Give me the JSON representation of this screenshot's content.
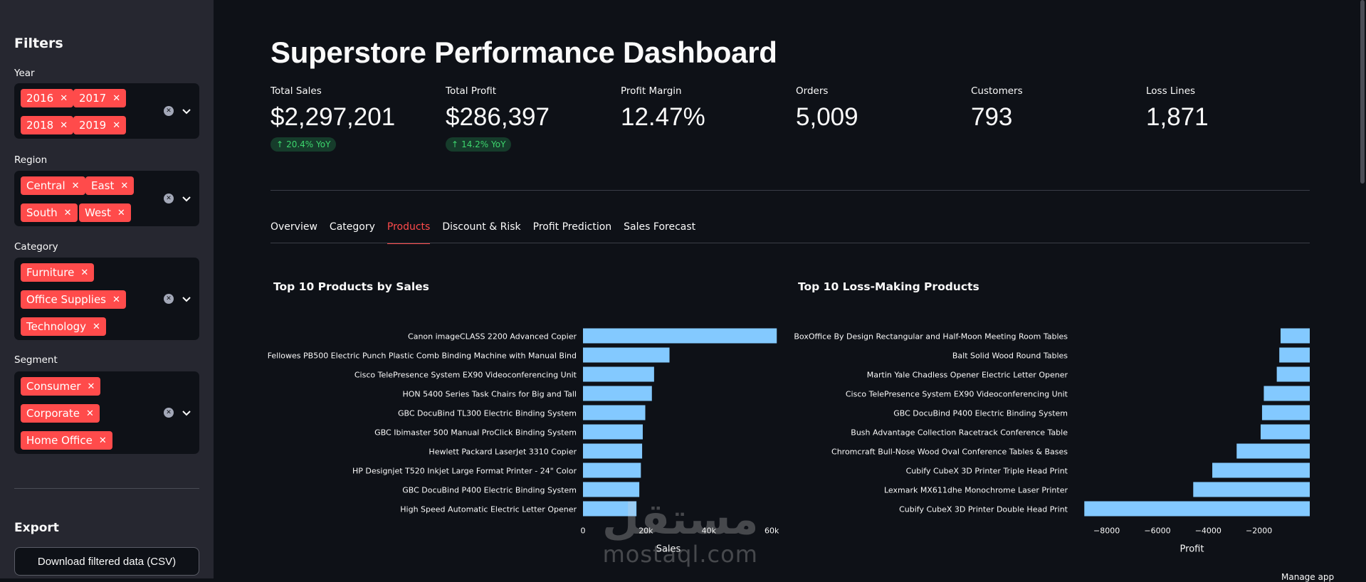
{
  "sidebar": {
    "title": "Filters",
    "filters": [
      {
        "label": "Year",
        "chips": [
          "2016",
          "2017",
          "2018",
          "2019"
        ]
      },
      {
        "label": "Region",
        "chips": [
          "Central",
          "East",
          "South",
          "West"
        ]
      },
      {
        "label": "Category",
        "chips": [
          "Furniture",
          "Office Supplies",
          "Technology"
        ]
      },
      {
        "label": "Segment",
        "chips": [
          "Consumer",
          "Corporate",
          "Home Office"
        ]
      }
    ],
    "export_title": "Export",
    "download_label": "Download filtered data (CSV)"
  },
  "main": {
    "title": "Superstore Performance Dashboard",
    "metrics": [
      {
        "label": "Total Sales",
        "value": "$2,297,201",
        "delta": "20.4% YoY"
      },
      {
        "label": "Total Profit",
        "value": "$286,397",
        "delta": "14.2% YoY"
      },
      {
        "label": "Profit Margin",
        "value": "12.47%"
      },
      {
        "label": "Orders",
        "value": "5,009"
      },
      {
        "label": "Customers",
        "value": "793"
      },
      {
        "label": "Loss Lines",
        "value": "1,871"
      }
    ],
    "tabs": [
      "Overview",
      "Category",
      "Products",
      "Discount & Risk",
      "Profit Prediction",
      "Sales Forecast"
    ],
    "active_tab": "Products"
  },
  "colors": {
    "accent": "#ff4b4b",
    "bar": "#83c9ff",
    "delta_text": "#3dd56d",
    "delta_bg": "#163c2b"
  },
  "watermark": {
    "arabic": "مستقل",
    "latin": "mostaql.com"
  },
  "manage_app": "Manage app",
  "chart_data": [
    {
      "type": "bar",
      "orientation": "horizontal",
      "title": "Top 10 Products by Sales",
      "xlabel": "Sales",
      "ylabel": "",
      "categories": [
        "Canon imageCLASS 2200 Advanced Copier",
        "Fellowes PB500 Electric Punch Plastic Comb Binding Machine with Manual Bind",
        "Cisco TelePresence System EX90 Videoconferencing Unit",
        "HON 5400 Series Task Chairs for Big and Tall",
        "GBC DocuBind TL300 Electric Binding System",
        "GBC Ibimaster 500 Manual ProClick Binding System",
        "Hewlett Packard LaserJet 3310 Copier",
        "HP Designjet T520 Inkjet Large Format Printer - 24\" Color",
        "GBC DocuBind P400 Electric Binding System",
        "High Speed Automatic Electric Letter Opener"
      ],
      "values": [
        61600,
        27500,
        22600,
        21900,
        19800,
        19000,
        18800,
        18400,
        17900,
        17000
      ],
      "xlim": [
        0,
        62000
      ],
      "xticks": [
        "0",
        "20k",
        "40k",
        "60k"
      ],
      "xtick_values": [
        0,
        20000,
        40000,
        60000
      ]
    },
    {
      "type": "bar",
      "orientation": "horizontal",
      "title": "Top 10 Loss-Making Products",
      "xlabel": "Profit",
      "ylabel": "",
      "categories": [
        "BoxOffice By Design Rectangular and Half-Moon Meeting Room Tables",
        "Balt Solid Wood Round Tables",
        "Martin Yale Chadless Opener Electric Letter Opener",
        "Cisco TelePresence System EX90 Videoconferencing Unit",
        "GBC DocuBind P400 Electric Binding System",
        "Bush Advantage Collection Racetrack Conference Table",
        "Chromcraft Bull-Nose Wood Oval Conference Tables & Bases",
        "Cubify CubeX 3D Printer Triple Head Print",
        "Lexmark MX611dhe Monochrome Laser Printer",
        "Cubify CubeX 3D Printer Double Head Print"
      ],
      "values": [
        -1150,
        -1200,
        -1300,
        -1810,
        -1880,
        -1935,
        -2880,
        -3840,
        -4590,
        -8880
      ],
      "xlim": [
        -9000,
        0
      ],
      "xticks": [
        "−8000",
        "−6000",
        "−4000",
        "−2000"
      ],
      "xtick_values": [
        -8000,
        -6000,
        -4000,
        -2000
      ]
    }
  ]
}
